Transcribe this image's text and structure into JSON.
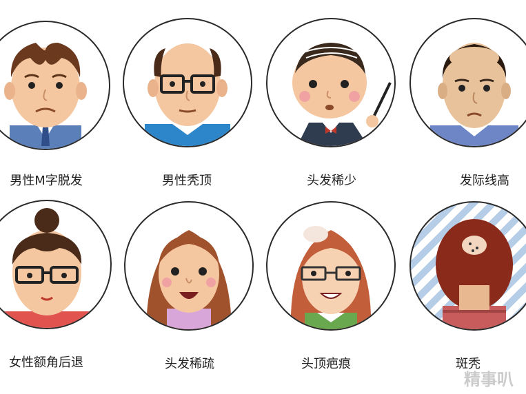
{
  "cards": [
    {
      "label": "男性M字脱发"
    },
    {
      "label": "男性秃顶"
    },
    {
      "label": "头发稀少"
    },
    {
      "label": "发际线高"
    },
    {
      "label": "女性额角后退"
    },
    {
      "label": "头发稀疏"
    },
    {
      "label": "头顶疤痕"
    },
    {
      "label": "斑秃"
    }
  ],
  "watermark": "精事叭"
}
